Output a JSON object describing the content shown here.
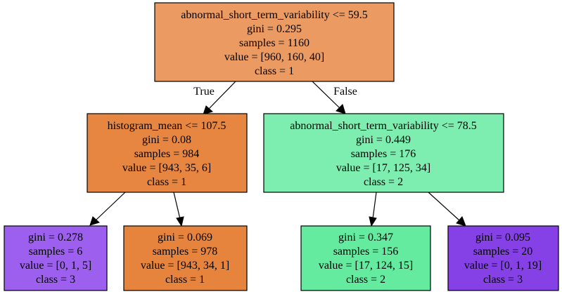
{
  "tree": {
    "nodes": [
      {
        "id": "n0",
        "fill": "#eb9a62",
        "lines": [
          "abnormal_short_term_variability <= 59.5",
          "gini = 0.295",
          "samples = 1160",
          "value = [960, 160, 40]",
          "class = 1"
        ]
      },
      {
        "id": "n1",
        "fill": "#e68640",
        "lines": [
          "histogram_mean <= 107.5",
          "gini = 0.08",
          "samples = 984",
          "value = [943, 35, 6]",
          "class = 1"
        ]
      },
      {
        "id": "n2",
        "fill": "#7deeb0",
        "lines": [
          "abnormal_short_term_variability <= 78.5",
          "gini = 0.449",
          "samples = 176",
          "value = [17, 125, 34]",
          "class = 2"
        ]
      },
      {
        "id": "n3",
        "fill": "#9d5fed",
        "lines": [
          "gini = 0.278",
          "samples = 6",
          "value = [0, 1, 5]",
          "class = 3"
        ]
      },
      {
        "id": "n4",
        "fill": "#e6843e",
        "lines": [
          "gini = 0.069",
          "samples = 978",
          "value = [943, 34, 1]",
          "class = 1"
        ]
      },
      {
        "id": "n5",
        "fill": "#64eb9f",
        "lines": [
          "gini = 0.347",
          "samples = 156",
          "value = [17, 124, 15]",
          "class = 2"
        ]
      },
      {
        "id": "n6",
        "fill": "#8540e6",
        "lines": [
          "gini = 0.095",
          "samples = 20",
          "value = [0, 1, 19]",
          "class = 3"
        ]
      }
    ],
    "edge_labels": {
      "true_label": "True",
      "false_label": "False"
    }
  }
}
